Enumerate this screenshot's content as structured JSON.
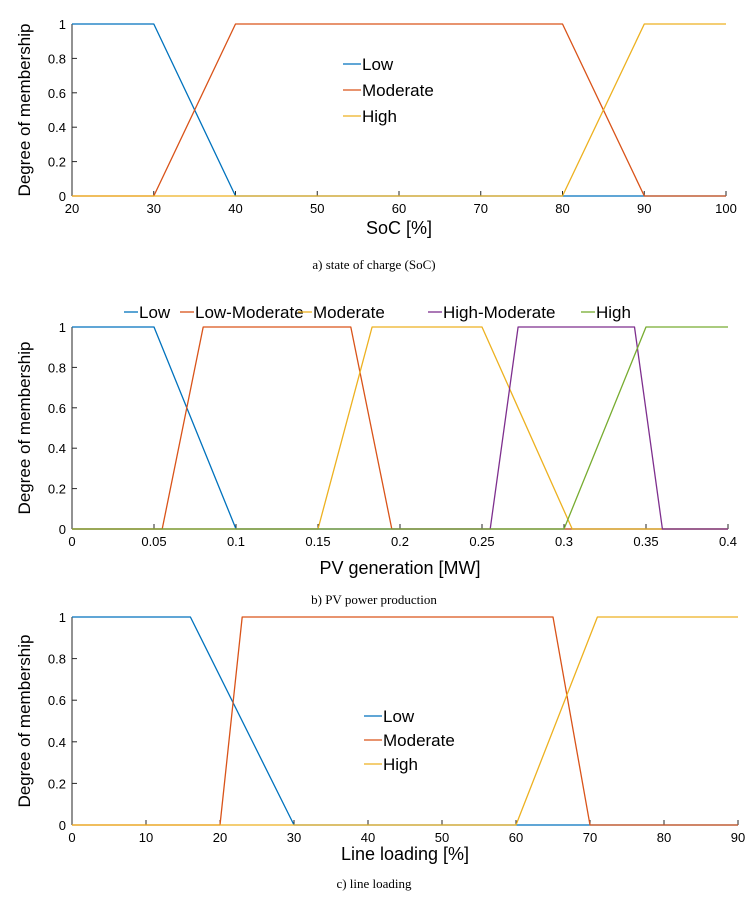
{
  "chart_data": [
    {
      "type": "line",
      "caption": "a) state of charge (SoC)",
      "xlabel": "SoC [%]",
      "ylabel": "Degree of membership",
      "xlim": [
        20,
        100
      ],
      "ylim": [
        0,
        1
      ],
      "xticks": [
        20,
        30,
        40,
        50,
        60,
        70,
        80,
        90,
        100
      ],
      "yticks": [
        0,
        0.2,
        0.4,
        0.6,
        0.8,
        1
      ],
      "legend_position": "upper-middle",
      "series": [
        {
          "name": "Low",
          "color": "#0072BD",
          "x": [
            20,
            30,
            40,
            100
          ],
          "y": [
            1,
            1,
            0,
            0
          ]
        },
        {
          "name": "Moderate",
          "color": "#D95319",
          "x": [
            20,
            30,
            40,
            80,
            90,
            100
          ],
          "y": [
            0,
            0,
            1,
            1,
            0,
            0
          ]
        },
        {
          "name": "High",
          "color": "#EDB120",
          "x": [
            20,
            80,
            90,
            100
          ],
          "y": [
            0,
            0,
            1,
            1
          ]
        }
      ]
    },
    {
      "type": "line",
      "caption": "b) PV power production",
      "xlabel": "PV generation [MW]",
      "ylabel": "Degree of membership",
      "xlim": [
        0,
        0.4
      ],
      "ylim": [
        0,
        1
      ],
      "xticks": [
        0,
        0.05,
        0.1,
        0.15,
        0.2,
        0.25,
        0.3,
        0.35,
        0.4
      ],
      "yticks": [
        0,
        0.2,
        0.4,
        0.6,
        0.8,
        1
      ],
      "legend_position": "top-outside",
      "series": [
        {
          "name": "Low",
          "color": "#0072BD",
          "x": [
            0,
            0.05,
            0.1,
            0.4
          ],
          "y": [
            1,
            1,
            0,
            0
          ]
        },
        {
          "name": "Low-Moderate",
          "color": "#D95319",
          "x": [
            0,
            0.055,
            0.08,
            0.17,
            0.195,
            0.4
          ],
          "y": [
            0,
            0,
            1,
            1,
            0,
            0
          ]
        },
        {
          "name": "Moderate",
          "color": "#EDB120",
          "x": [
            0,
            0.15,
            0.183,
            0.25,
            0.305,
            0.4
          ],
          "y": [
            0,
            0,
            1,
            1,
            0,
            0
          ]
        },
        {
          "name": "High-Moderate",
          "color": "#7E2F8E",
          "x": [
            0,
            0.255,
            0.272,
            0.343,
            0.36,
            0.4
          ],
          "y": [
            0,
            0,
            1,
            1,
            0,
            0
          ]
        },
        {
          "name": "High",
          "color": "#77AC30",
          "x": [
            0,
            0.3,
            0.35,
            0.4
          ],
          "y": [
            0,
            0,
            1,
            1
          ]
        }
      ]
    },
    {
      "type": "line",
      "caption": "c) line loading",
      "xlabel": "Line loading [%]",
      "ylabel": "Degree of membership",
      "xlim": [
        0,
        90
      ],
      "ylim": [
        0,
        1
      ],
      "xticks": [
        0,
        10,
        20,
        30,
        40,
        50,
        60,
        70,
        80,
        90
      ],
      "yticks": [
        0,
        0.2,
        0.4,
        0.6,
        0.8,
        1
      ],
      "legend_position": "center",
      "series": [
        {
          "name": "Low",
          "color": "#0072BD",
          "x": [
            0,
            16,
            30,
            90
          ],
          "y": [
            1,
            1,
            0,
            0
          ]
        },
        {
          "name": "Moderate",
          "color": "#D95319",
          "x": [
            0,
            20,
            23,
            65,
            70,
            90
          ],
          "y": [
            0,
            0,
            1,
            1,
            0,
            0
          ]
        },
        {
          "name": "High",
          "color": "#EDB120",
          "x": [
            0,
            60,
            71,
            90
          ],
          "y": [
            0,
            0,
            1,
            1
          ]
        }
      ]
    }
  ]
}
